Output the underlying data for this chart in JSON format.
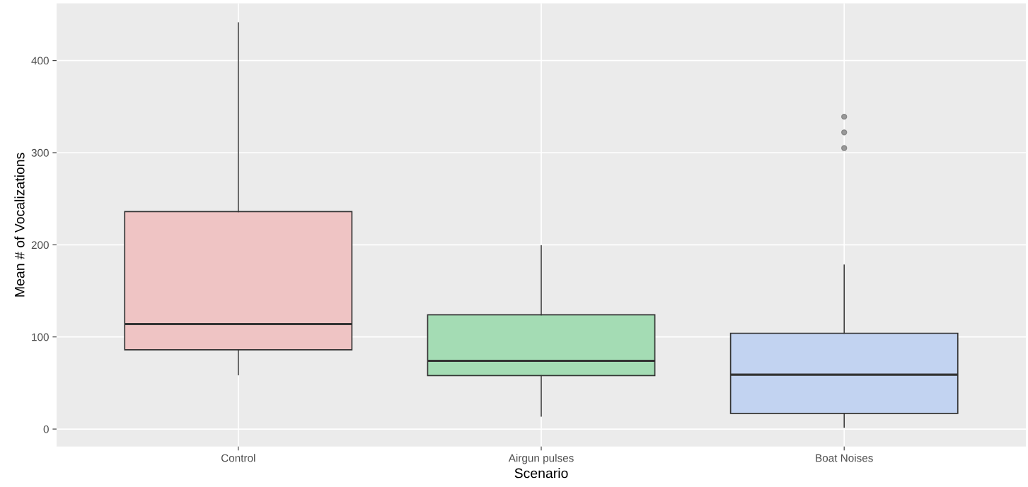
{
  "chart_data": {
    "type": "box",
    "xlabel": "Scenario",
    "ylabel": "Mean # of Vocalizations",
    "categories": [
      "Control",
      "Airgun pulses",
      "Boat Noises"
    ],
    "boxes": [
      {
        "low": 59,
        "q1": 86,
        "median": 114,
        "q3": 236,
        "high": 441
      },
      {
        "low": 14,
        "q1": 58,
        "median": 74,
        "q3": 124,
        "high": 199
      },
      {
        "low": 2,
        "q1": 17,
        "median": 59,
        "q3": 104,
        "high": 178,
        "outliers": [
          305,
          322,
          339
        ]
      }
    ],
    "colors": [
      "#efc4c4",
      "#a4dcb4",
      "#c2d3f1"
    ],
    "ylim": [
      -19,
      462
    ],
    "yticks": [
      0,
      100,
      200,
      300,
      400
    ],
    "grid": true
  }
}
